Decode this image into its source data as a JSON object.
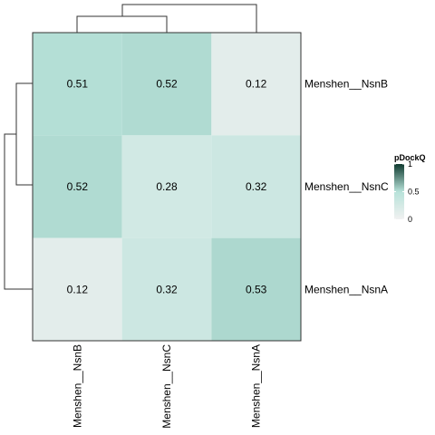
{
  "chart_data": {
    "type": "heatmap",
    "rows": [
      "Menshen__NsnB",
      "Menshen__NsnC",
      "Menshen__NsnA"
    ],
    "columns": [
      "Menshen__NsnB",
      "Menshen__NsnC",
      "Menshen__NsnA"
    ],
    "values": [
      [
        0.51,
        0.52,
        0.12
      ],
      [
        0.52,
        0.28,
        0.32
      ],
      [
        0.12,
        0.32,
        0.53
      ]
    ],
    "cell_labels": [
      [
        "0.51",
        "0.52",
        "0.12"
      ],
      [
        "0.52",
        "0.28",
        "0.32"
      ],
      [
        "0.12",
        "0.32",
        "0.53"
      ]
    ],
    "legend": {
      "title": "pDockQ",
      "ticks": [
        "1",
        "0.5",
        "0"
      ],
      "tick_values": [
        1,
        0.5,
        0
      ],
      "range": [
        0,
        1
      ],
      "placement": "right"
    },
    "colors": {
      "low": "#f1f1f1",
      "mid": "#b7e2d9",
      "high": "#0f3a2f"
    },
    "dendrograms": {
      "rows": "left",
      "columns": "top"
    }
  }
}
